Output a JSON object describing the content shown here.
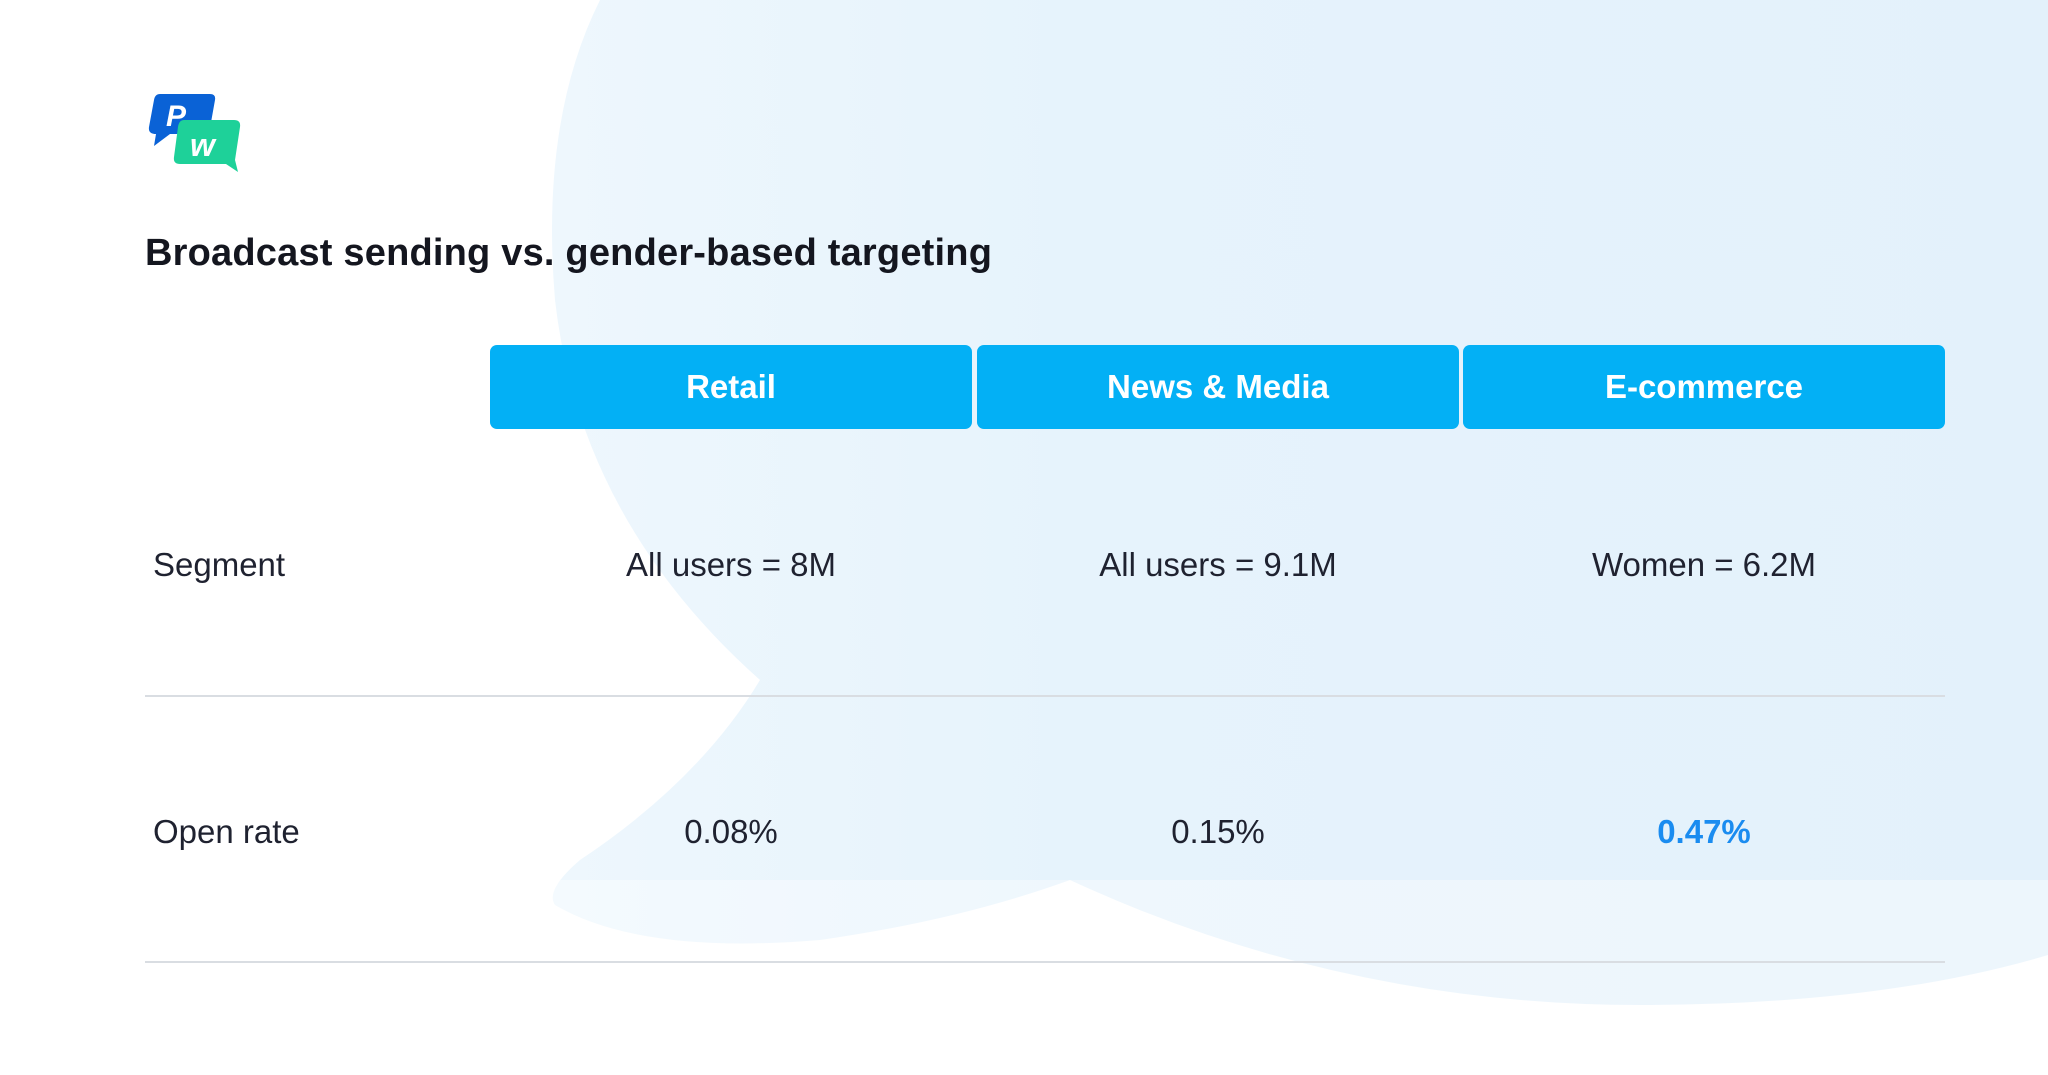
{
  "title": "Broadcast sending vs. gender-based targeting",
  "logo": {
    "name": "pushwoosh-logo",
    "primary_letter": "P",
    "secondary_letter": "w",
    "primary_color": "#0a62d6",
    "secondary_color": "#1ed199"
  },
  "colors": {
    "header_background": "#03b0f5",
    "highlight": "#1a8cf0",
    "background_shape": "#e3f2fc"
  },
  "chart_data": {
    "type": "table",
    "columns": [
      "Retail",
      "News & Media",
      "E-commerce"
    ],
    "rows": [
      {
        "label": "Segment",
        "values": [
          "All users = 8M",
          "All users = 9.1M",
          "Women = 6.2M"
        ]
      },
      {
        "label": "Open rate",
        "values": [
          "0.08%",
          "0.15%",
          "0.47%"
        ],
        "highlight_index": 2
      }
    ]
  }
}
